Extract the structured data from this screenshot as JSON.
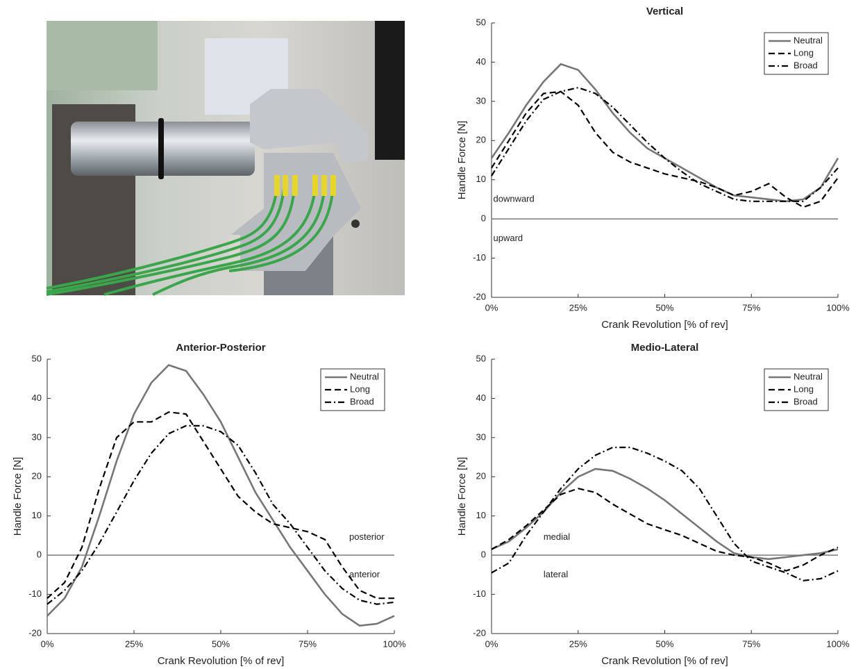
{
  "chart_data": [
    {
      "type": "line",
      "title": "Vertical",
      "xlabel": "Crank Revolution [% of rev]",
      "ylabel": "Handle Force [N]",
      "x": [
        0,
        5,
        10,
        15,
        20,
        25,
        30,
        35,
        40,
        45,
        50,
        55,
        60,
        65,
        70,
        75,
        80,
        85,
        90,
        95,
        100
      ],
      "series": [
        {
          "name": "Neutral",
          "color": "#767676",
          "style": "solid",
          "values": [
            15.5,
            22,
            29,
            35,
            39.5,
            38,
            33,
            27,
            22,
            18,
            15.5,
            13,
            10.5,
            8,
            6,
            5.5,
            5,
            4.5,
            5,
            8,
            15.5
          ]
        },
        {
          "name": "Long",
          "color": "#000000",
          "style": "dashed",
          "values": [
            13,
            20,
            27,
            32,
            32.5,
            29,
            22,
            17,
            14.5,
            13,
            11.5,
            10.5,
            9.5,
            8,
            6,
            7,
            9,
            5.5,
            3,
            4.5,
            10.5
          ]
        },
        {
          "name": "Broad",
          "color": "#000000",
          "style": "dashdot",
          "values": [
            11,
            18,
            25,
            30.5,
            32.5,
            33.5,
            32,
            28.5,
            24,
            19.5,
            15.5,
            12,
            9,
            7,
            5,
            4.5,
            4.5,
            4.5,
            4.5,
            8,
            13
          ]
        }
      ],
      "xlim": [
        0,
        100
      ],
      "ylim": [
        -20,
        50
      ],
      "xticks": [
        {
          "value": 0,
          "label": "0%"
        },
        {
          "value": 25,
          "label": "25%"
        },
        {
          "value": 50,
          "label": "50%"
        },
        {
          "value": 75,
          "label": "75%"
        },
        {
          "value": 100,
          "label": "100%"
        }
      ],
      "yticks": [
        -20,
        -10,
        0,
        10,
        20,
        30,
        40,
        50
      ],
      "hline": 0,
      "legend": "upper right",
      "annotations": [
        {
          "text": "downward",
          "x": 0.5,
          "y": 5
        },
        {
          "text": "upward",
          "x": 0.5,
          "y": -5
        }
      ]
    },
    {
      "type": "line",
      "title": "Anterior-Posterior",
      "xlabel": "Crank Revolution [% of rev]",
      "ylabel": "Handle Force [N]",
      "x": [
        0,
        5,
        10,
        15,
        20,
        25,
        30,
        35,
        40,
        45,
        50,
        55,
        60,
        65,
        70,
        75,
        80,
        85,
        90,
        95,
        100
      ],
      "series": [
        {
          "name": "Neutral",
          "color": "#767676",
          "style": "solid",
          "values": [
            -15.5,
            -11,
            -3,
            10,
            24,
            36,
            44,
            48.5,
            47,
            41,
            34,
            25,
            16,
            9,
            2,
            -4,
            -10,
            -15,
            -18,
            -17.5,
            -15.5
          ]
        },
        {
          "name": "Long",
          "color": "#000000",
          "style": "dashed",
          "values": [
            -11,
            -7,
            2,
            17,
            30,
            34,
            34,
            36.5,
            36,
            29,
            22,
            15,
            11,
            8,
            7,
            6,
            4,
            -3,
            -9,
            -11,
            -11
          ]
        },
        {
          "name": "Broad",
          "color": "#000000",
          "style": "dashdot",
          "values": [
            -12.5,
            -9,
            -4,
            3,
            11,
            19,
            26,
            31,
            33,
            33,
            31.5,
            28,
            21,
            13,
            8,
            2,
            -4,
            -8.5,
            -11.5,
            -12.5,
            -12
          ]
        }
      ],
      "xlim": [
        0,
        100
      ],
      "ylim": [
        -20,
        50
      ],
      "xticks": [
        {
          "value": 0,
          "label": "0%"
        },
        {
          "value": 25,
          "label": "25%"
        },
        {
          "value": 50,
          "label": "50%"
        },
        {
          "value": 75,
          "label": "75%"
        },
        {
          "value": 100,
          "label": "100%"
        }
      ],
      "yticks": [
        -20,
        -10,
        0,
        10,
        20,
        30,
        40,
        50
      ],
      "hline": 0,
      "legend": "upper right",
      "annotations": [
        {
          "text": "posterior",
          "x": 87,
          "y": 4.5
        },
        {
          "text": "anterior",
          "x": 87,
          "y": -5
        }
      ]
    },
    {
      "type": "line",
      "title": "Medio-Lateral",
      "xlabel": "Crank Revolution [% of rev]",
      "ylabel": "Handle Force [N]",
      "x": [
        0,
        5,
        10,
        15,
        20,
        25,
        30,
        35,
        40,
        45,
        50,
        55,
        60,
        65,
        70,
        75,
        80,
        85,
        90,
        95,
        100
      ],
      "series": [
        {
          "name": "Neutral",
          "color": "#767676",
          "style": "solid",
          "values": [
            1.5,
            3.5,
            7,
            11,
            16,
            20,
            22,
            21.5,
            19.5,
            17,
            14,
            10.5,
            7,
            3.5,
            0.5,
            -0.5,
            -1,
            -0.5,
            0,
            0.5,
            1.5
          ]
        },
        {
          "name": "Long",
          "color": "#000000",
          "style": "dashed",
          "values": [
            1.5,
            4,
            7.5,
            11.5,
            15.5,
            17,
            16,
            13,
            10.5,
            8,
            6.5,
            5,
            3,
            1,
            0,
            -0.5,
            -2,
            -4,
            -2.5,
            0,
            2
          ]
        },
        {
          "name": "Broad",
          "color": "#000000",
          "style": "dashdot",
          "values": [
            -4.5,
            -2,
            5,
            11,
            17,
            22,
            25.5,
            27.5,
            27.5,
            26,
            24,
            21.5,
            17,
            10,
            3,
            -1.5,
            -3,
            -4.5,
            -6.5,
            -6,
            -4
          ]
        }
      ],
      "xlim": [
        0,
        100
      ],
      "ylim": [
        -20,
        50
      ],
      "xticks": [
        {
          "value": 0,
          "label": "0%"
        },
        {
          "value": 25,
          "label": "25%"
        },
        {
          "value": 50,
          "label": "50%"
        },
        {
          "value": 75,
          "label": "75%"
        },
        {
          "value": 100,
          "label": "100%"
        }
      ],
      "yticks": [
        -20,
        -10,
        0,
        10,
        20,
        30,
        40,
        50
      ],
      "hline": 0,
      "legend": "upper right",
      "annotations": [
        {
          "text": "medial",
          "x": 15,
          "y": 4.5
        },
        {
          "text": "lateral",
          "x": 15,
          "y": -5
        }
      ]
    }
  ]
}
